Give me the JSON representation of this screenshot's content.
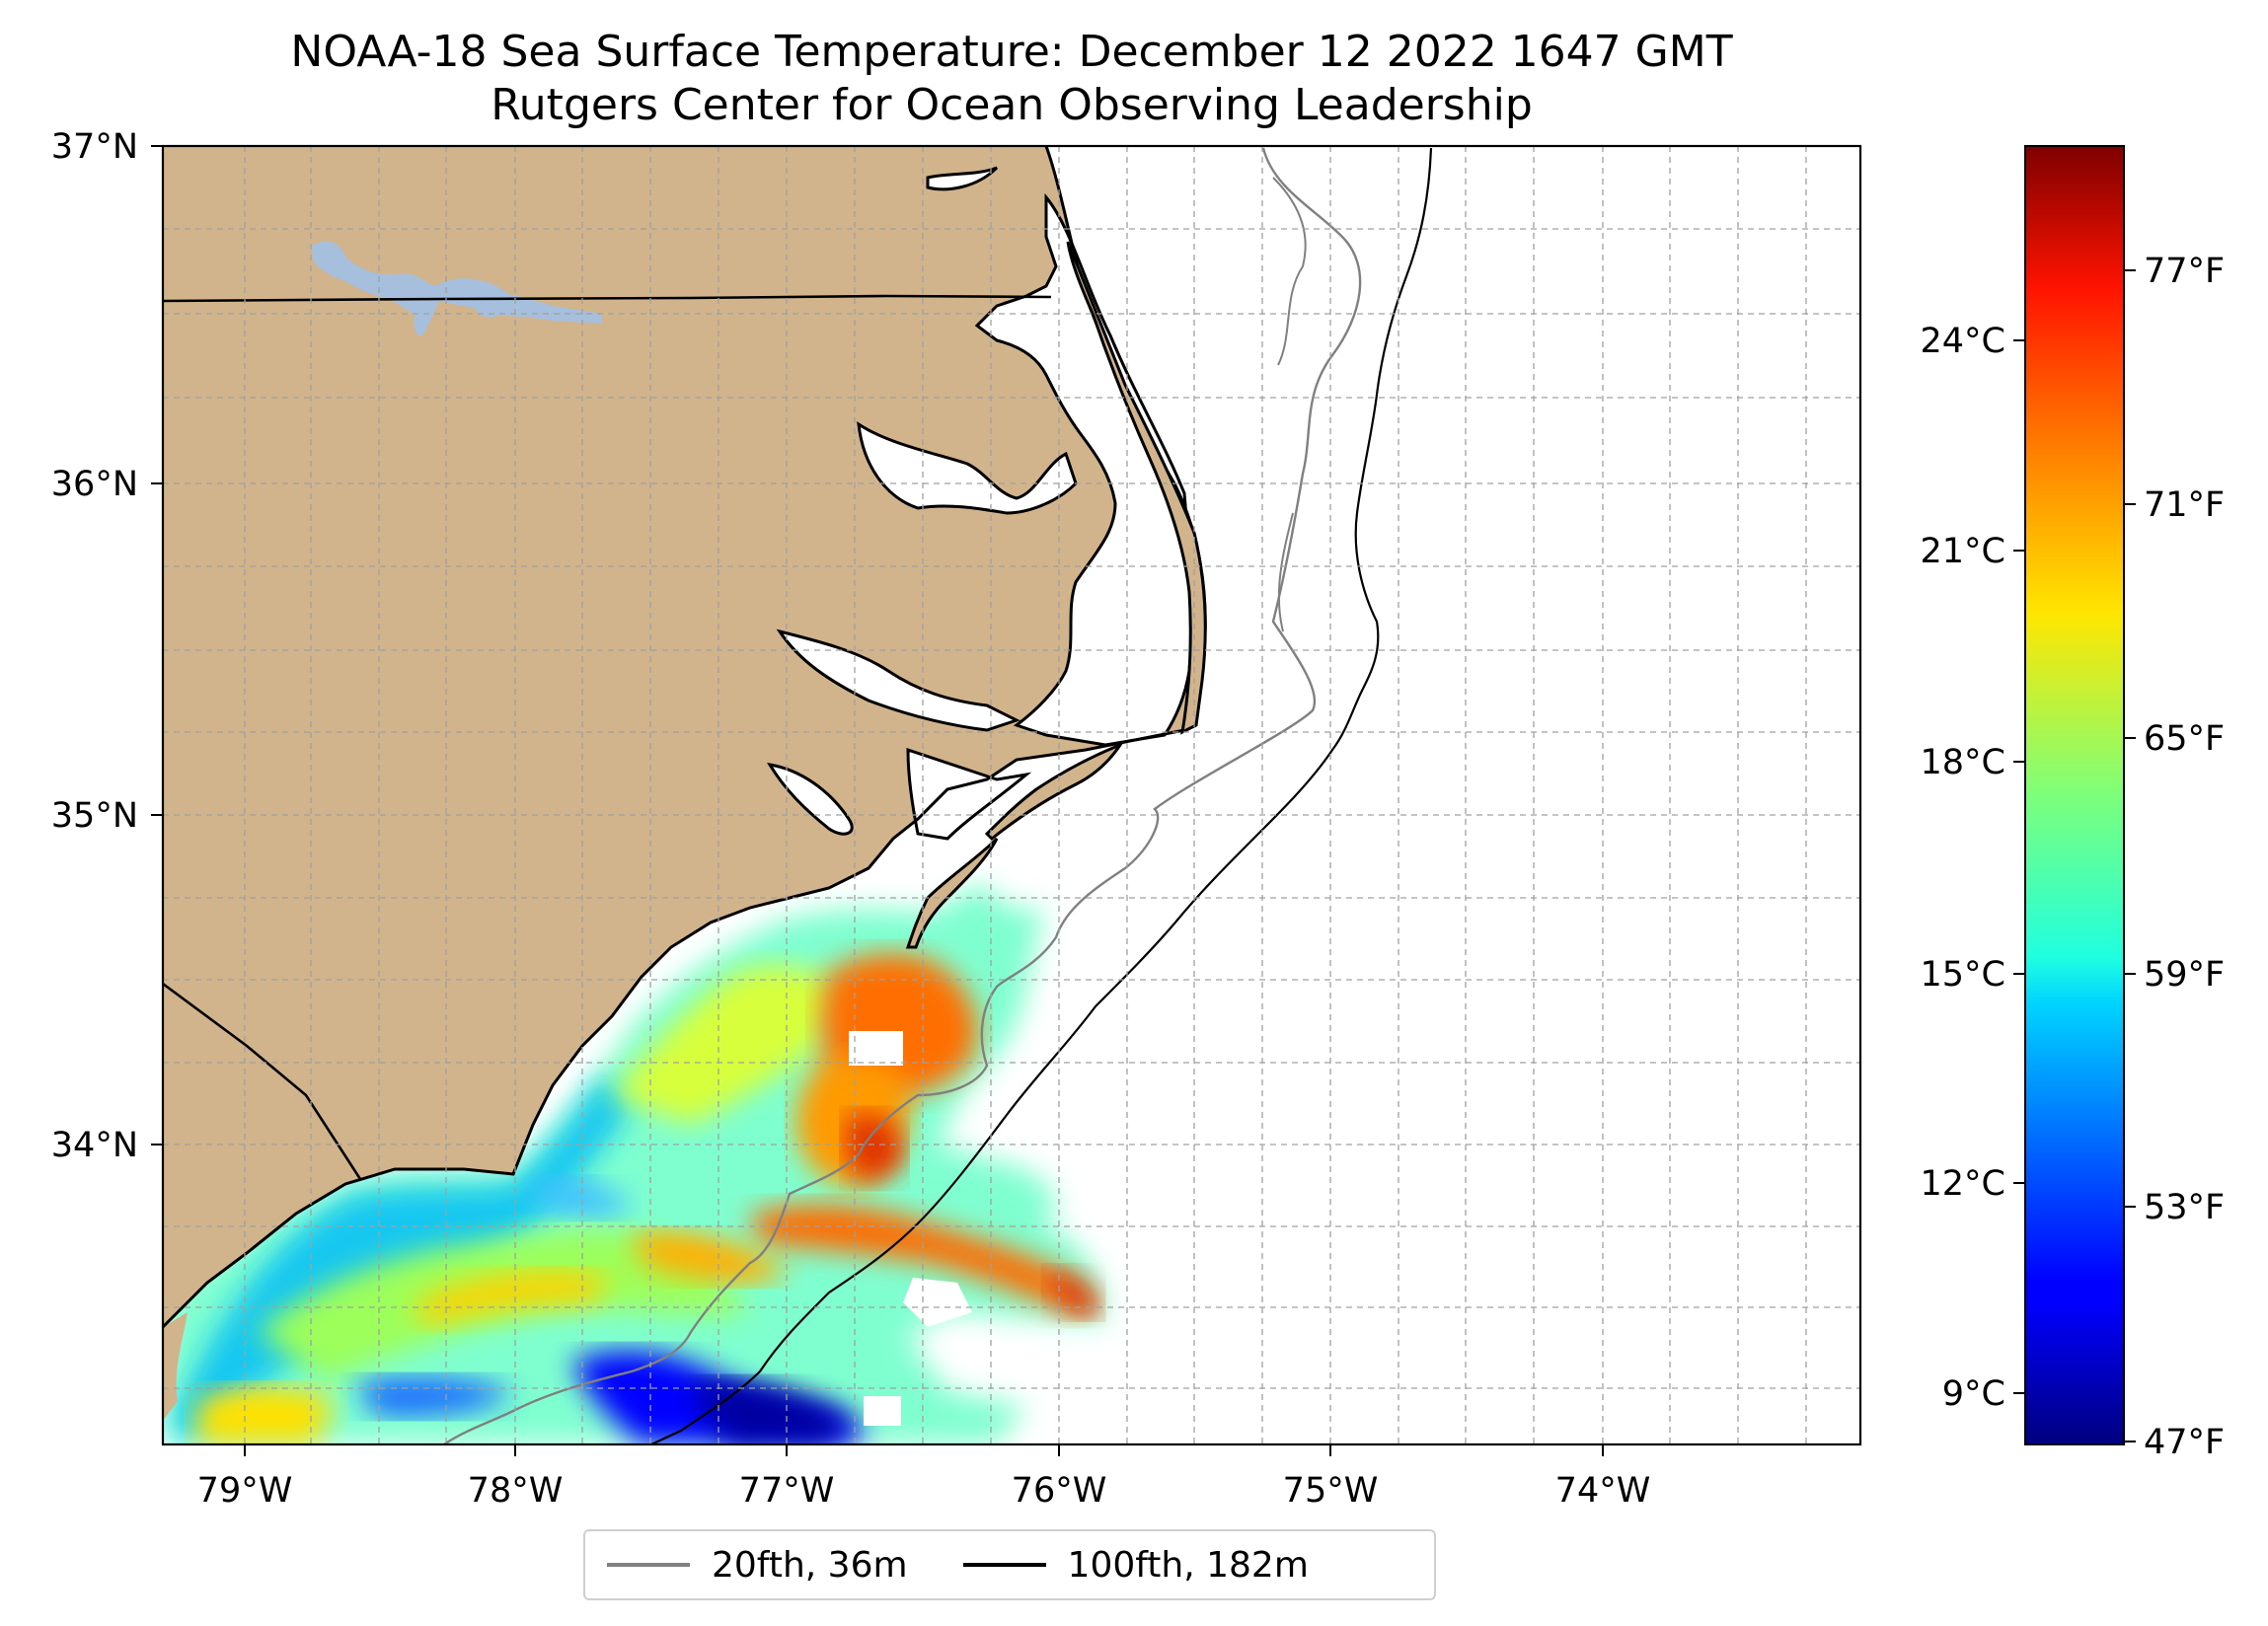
{
  "title": {
    "line1": "NOAA-18 Sea Surface Temperature: December 12 2022 1647 GMT",
    "line2": "Rutgers Center for Ocean Observing Leadership"
  },
  "map": {
    "lon_range": [
      -79.3,
      -73.0
    ],
    "lat_range": [
      33.15,
      37.0
    ],
    "lon_ticks": [
      {
        "value": -79,
        "label": "79°W"
      },
      {
        "value": -78,
        "label": "78°W"
      },
      {
        "value": -77,
        "label": "77°W"
      },
      {
        "value": -76,
        "label": "76°W"
      },
      {
        "value": -75,
        "label": "75°W"
      },
      {
        "value": -74,
        "label": "74°W"
      }
    ],
    "lat_ticks": [
      {
        "value": 37,
        "label": "37°N"
      },
      {
        "value": 36,
        "label": "36°N"
      },
      {
        "value": 35,
        "label": "35°N"
      },
      {
        "value": 34,
        "label": "34°N"
      }
    ],
    "gridlines": "dashed",
    "land_color": "#d2b48c",
    "lake_color": "#a5bfdd",
    "legend": {
      "position": "bottom-center",
      "items": [
        {
          "label": "20fth, 36m",
          "color": "#808080"
        },
        {
          "label": "100fth, 182m",
          "color": "#000000"
        }
      ]
    },
    "colorbar": {
      "colormap": "jet",
      "celsius_ticks": [
        {
          "value": 9,
          "label": "9°C"
        },
        {
          "value": 12,
          "label": "12°C"
        },
        {
          "value": 15,
          "label": "15°C"
        },
        {
          "value": 18,
          "label": "18°C"
        },
        {
          "value": 21,
          "label": "21°C"
        },
        {
          "value": 24,
          "label": "24°C"
        }
      ],
      "fahrenheit_ticks": [
        {
          "value": 47,
          "label": "47°F"
        },
        {
          "value": 53,
          "label": "53°F"
        },
        {
          "value": 59,
          "label": "59°F"
        },
        {
          "value": 65,
          "label": "65°F"
        },
        {
          "value": 71,
          "label": "71°F"
        },
        {
          "value": 77,
          "label": "77°F"
        }
      ]
    }
  }
}
